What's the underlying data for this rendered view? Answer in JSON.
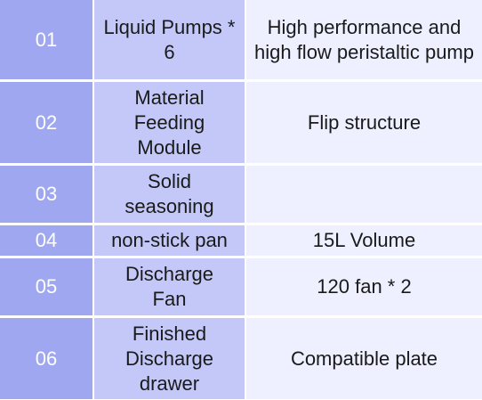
{
  "rows": [
    {
      "num": "01",
      "name": "Liquid Pumps * 6",
      "desc": "High performance and high flow peristaltic pump"
    },
    {
      "num": "02",
      "name": "Material Feeding Module",
      "desc": "Flip structure"
    },
    {
      "num": "03",
      "name": "Solid seasoning",
      "desc": ""
    },
    {
      "num": "04",
      "name": "non-stick pan",
      "desc": "15L Volume"
    },
    {
      "num": "05",
      "name": "Discharge Fan",
      "desc": "120 fan * 2"
    },
    {
      "num": "06",
      "name": "Finished Discharge drawer",
      "desc": "Compatible plate"
    }
  ],
  "colors": {
    "number_column": "#9fa7f0",
    "name_column": "#c3c8f8",
    "description_column": "#eef0ff",
    "divider": "#ffffff"
  }
}
